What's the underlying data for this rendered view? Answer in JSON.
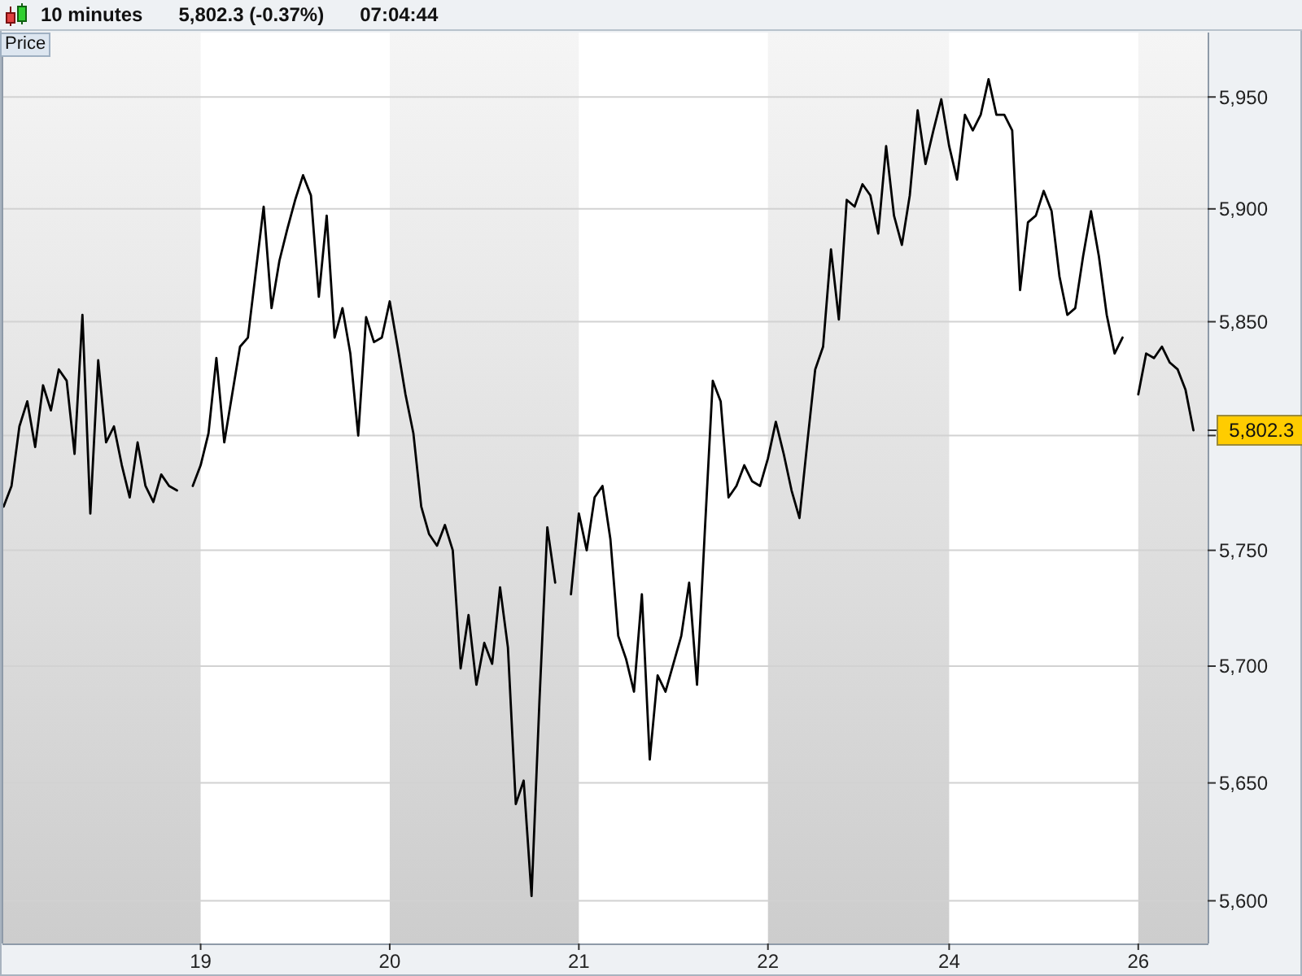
{
  "chart_data": {
    "type": "line",
    "title": "10 minutes",
    "subtitle": "5,802.3 (-0.37%)",
    "ylabel": "Price",
    "annotations": [
      "07:04:44",
      "5,802.3"
    ],
    "color": "#000000",
    "log": true,
    "grid": "y",
    "ylim": [
      5582,
      5979
    ],
    "yticks": [
      {
        "value": 5600,
        "label": "5,600"
      },
      {
        "value": 5650,
        "label": "5,650"
      },
      {
        "value": 5700,
        "label": "5,700"
      },
      {
        "value": 5750,
        "label": "5,750"
      },
      {
        "value": 5800,
        "label": null
      },
      {
        "value": 5850,
        "label": "5,850"
      },
      {
        "value": 5900,
        "label": "5,900"
      },
      {
        "value": 5950,
        "label": "5,950"
      }
    ],
    "bands": [
      {
        "axis": "x",
        "from": "19",
        "to": "20",
        "color": "#ffffff"
      },
      {
        "axis": "x",
        "from": "21",
        "to": "22",
        "color": "#ffffff"
      },
      {
        "axis": "x",
        "from": "24",
        "to": "26",
        "color": "#ffffff"
      }
    ],
    "categories": [
      null,
      null,
      null,
      null,
      null,
      null,
      null,
      null,
      null,
      null,
      null,
      null,
      null,
      null,
      null,
      null,
      null,
      null,
      null,
      null,
      null,
      null,
      null,
      null,
      null,
      "19",
      null,
      null,
      null,
      null,
      null,
      null,
      null,
      null,
      null,
      null,
      null,
      null,
      null,
      null,
      null,
      null,
      null,
      null,
      null,
      null,
      null,
      null,
      null,
      "20",
      null,
      null,
      null,
      null,
      null,
      null,
      null,
      null,
      null,
      null,
      null,
      null,
      null,
      null,
      null,
      null,
      null,
      null,
      null,
      null,
      null,
      null,
      null,
      "21",
      null,
      null,
      null,
      null,
      null,
      null,
      null,
      null,
      null,
      null,
      null,
      null,
      null,
      null,
      null,
      null,
      null,
      null,
      null,
      null,
      null,
      null,
      null,
      "22",
      null,
      null,
      null,
      null,
      null,
      null,
      null,
      null,
      null,
      null,
      null,
      null,
      null,
      null,
      null,
      null,
      null,
      null,
      null,
      null,
      null,
      null,
      "24",
      null,
      null,
      null,
      null,
      null,
      null,
      null,
      null,
      null,
      null,
      null,
      null,
      null,
      null,
      null,
      null,
      null,
      null,
      null,
      null,
      null,
      null,
      null,
      "26",
      null,
      null,
      null,
      null,
      null,
      null,
      null
    ],
    "values": [
      5769,
      5778,
      5804,
      5815,
      5795,
      5822,
      5811,
      5829,
      5824,
      5792,
      5853,
      5766,
      5833,
      5797,
      5804,
      5787,
      5773,
      5797,
      5778,
      5771,
      5783,
      5778,
      5776,
      null,
      5778,
      5787,
      5801,
      5834,
      5797,
      5818,
      5839,
      5843,
      5872,
      5901,
      5856,
      5877,
      5891,
      5904,
      5915,
      5906,
      5861,
      5897,
      5843,
      5856,
      5836,
      5800,
      5852,
      5841,
      5843,
      5859,
      5839,
      5818,
      5801,
      5769,
      5757,
      5752,
      5761,
      5750,
      5699,
      5722,
      5692,
      5710,
      5701,
      5734,
      5708,
      5641,
      5651,
      5602,
      5685,
      5760,
      5736,
      null,
      5731,
      5766,
      5750,
      5773,
      5778,
      5755,
      5713,
      5703,
      5689,
      5731,
      5660,
      5696,
      5689,
      5701,
      5713,
      5736,
      5692,
      5759,
      5824,
      5815,
      5773,
      5778,
      5787,
      5780,
      5778,
      5790,
      5806,
      5792,
      5776,
      5764,
      5797,
      5829,
      5839,
      5882,
      5851,
      5904,
      5901,
      5911,
      5906,
      5889,
      5928,
      5897,
      5884,
      5906,
      5944,
      5920,
      5935,
      5949,
      5928,
      5913,
      5942,
      5935,
      5942,
      5958,
      5942,
      5942,
      5935,
      5864,
      5894,
      5897,
      5908,
      5899,
      5870,
      5853,
      5856,
      5879,
      5899,
      5879,
      5853,
      5836,
      5843,
      null,
      5818,
      5836,
      5834,
      5839,
      5832,
      5829,
      5820,
      5802.3
    ]
  }
}
